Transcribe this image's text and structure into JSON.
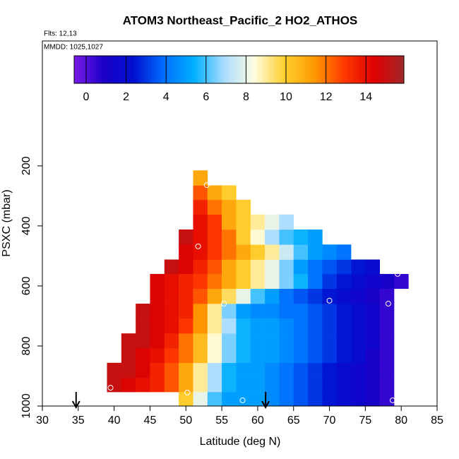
{
  "chart_data": {
    "type": "heatmap",
    "title": "ATOM3 Northeast_Pacific_2 HO2_ATHOS",
    "flights": "Flts: 12,13",
    "dates": "MMDD: 1025,1027",
    "x_label": "Latitude (deg N)",
    "y_label": "PSXC (mbar)",
    "xlim": [
      30,
      85
    ],
    "xticks": [
      30,
      35,
      40,
      45,
      50,
      55,
      60,
      65,
      70,
      75,
      80,
      85
    ],
    "ylim": [
      1000,
      -216
    ],
    "yticks": [
      200,
      400,
      600,
      800,
      1000
    ],
    "zlim": [
      -0.6,
      15.9
    ],
    "zticks": [
      0,
      2,
      4,
      6,
      8,
      10,
      12,
      14
    ],
    "colors": [
      "#7a1ce8",
      "#1a00c8",
      "#0010d0",
      "#0070ff",
      "#00b0ff",
      "#a8dcff",
      "#fffde0",
      "#ffd030",
      "#ff9a00",
      "#ff3a00",
      "#e00000",
      "#a02828"
    ],
    "x_edges": [
      39,
      41,
      43,
      45,
      47,
      49,
      51,
      53,
      55,
      57,
      59,
      61,
      63,
      65,
      67,
      69,
      71,
      73,
      75,
      77,
      79,
      81
    ],
    "y_edges": [
      1000,
      953,
      906,
      856,
      807,
      758,
      708,
      659,
      609,
      560,
      512,
      462,
      412,
      362,
      313,
      265,
      215
    ],
    "z": [
      [
        null,
        null,
        null,
        null,
        null,
        10,
        8,
        6,
        5,
        5,
        5,
        4.5,
        4,
        3.5,
        3,
        2.5,
        2,
        1.5,
        1,
        0.5,
        null
      ],
      [
        15,
        14.5,
        14,
        13.5,
        12.5,
        11,
        9,
        7,
        5.5,
        5,
        5,
        4.5,
        4,
        3.5,
        3,
        2.5,
        2,
        1.5,
        1,
        0.5,
        null
      ],
      [
        15,
        15,
        14.5,
        13.5,
        12.5,
        11,
        9,
        7,
        5.5,
        5,
        5,
        4.5,
        4,
        3.5,
        3,
        2.5,
        2,
        1.5,
        1,
        0.5,
        null
      ],
      [
        null,
        15,
        14.5,
        14,
        13,
        12,
        10.5,
        8.5,
        6.5,
        5.5,
        5,
        5,
        4.5,
        4,
        3.5,
        3,
        2.5,
        2,
        1,
        0.5,
        null
      ],
      [
        null,
        15,
        15,
        14.5,
        13.5,
        12,
        10.5,
        8.5,
        6.5,
        5.5,
        5,
        5,
        4.5,
        4,
        3.5,
        3,
        2.5,
        2,
        1.5,
        0.5,
        null
      ],
      [
        null,
        null,
        15,
        14.5,
        14,
        13,
        11.5,
        9,
        7,
        5.5,
        5,
        5,
        4.5,
        4,
        3.5,
        3,
        2.5,
        2,
        1.5,
        0.5,
        null
      ],
      [
        null,
        null,
        15,
        14.5,
        14,
        13.5,
        11.5,
        9,
        6.5,
        5,
        4.5,
        4.5,
        4,
        4,
        3.5,
        3,
        2.5,
        2,
        1.5,
        0.5,
        null
      ],
      [
        null,
        null,
        null,
        14.5,
        14,
        13.5,
        12.5,
        11,
        9.5,
        8,
        6,
        5,
        4,
        3.5,
        3,
        2.5,
        2,
        1.5,
        1,
        0.5,
        null
      ],
      [
        null,
        null,
        null,
        14.5,
        14,
        13.5,
        13,
        12,
        11,
        10,
        9,
        8,
        6.5,
        5.5,
        4,
        3,
        2.5,
        2,
        1.5,
        1,
        0.5
      ],
      [
        null,
        null,
        null,
        null,
        15,
        14.5,
        13.5,
        12.5,
        11,
        10,
        9,
        8,
        6.5,
        5,
        4,
        3.5,
        3,
        2.5,
        2,
        null,
        null
      ],
      [
        null,
        null,
        null,
        null,
        null,
        14.5,
        14,
        13,
        12,
        11,
        10,
        9,
        7.5,
        6,
        5,
        4.5,
        4,
        null,
        null,
        null,
        null
      ],
      [
        null,
        null,
        null,
        null,
        null,
        15,
        14,
        13,
        12,
        10,
        8.5,
        7,
        6,
        5.5,
        5,
        null,
        null,
        null,
        null,
        null,
        null
      ],
      [
        null,
        null,
        null,
        null,
        null,
        null,
        14,
        13,
        11,
        10,
        9,
        8,
        7,
        null,
        null,
        null,
        null,
        null,
        null,
        null,
        null
      ],
      [
        null,
        null,
        null,
        null,
        null,
        null,
        13.5,
        12,
        11,
        10,
        null,
        null,
        null,
        null,
        null,
        null,
        null,
        null,
        null,
        null,
        null
      ],
      [
        null,
        null,
        null,
        null,
        null,
        null,
        12.5,
        11,
        10,
        null,
        null,
        null,
        null,
        null,
        null,
        null,
        null,
        null,
        null,
        null,
        null
      ],
      [
        null,
        null,
        null,
        null,
        null,
        null,
        11,
        null,
        null,
        null,
        null,
        null,
        null,
        null,
        null,
        null,
        null,
        null,
        null,
        null,
        null
      ]
    ],
    "points": {
      "x": [
        52.9,
        51.7,
        55.3,
        70.0,
        78.2,
        79.5,
        39.5,
        50.2,
        57.9,
        78.8
      ],
      "y": [
        264,
        468,
        659,
        649,
        659,
        560,
        939,
        955,
        981,
        981
      ]
    },
    "arrows_x": [
      34.7,
      61.1
    ]
  }
}
